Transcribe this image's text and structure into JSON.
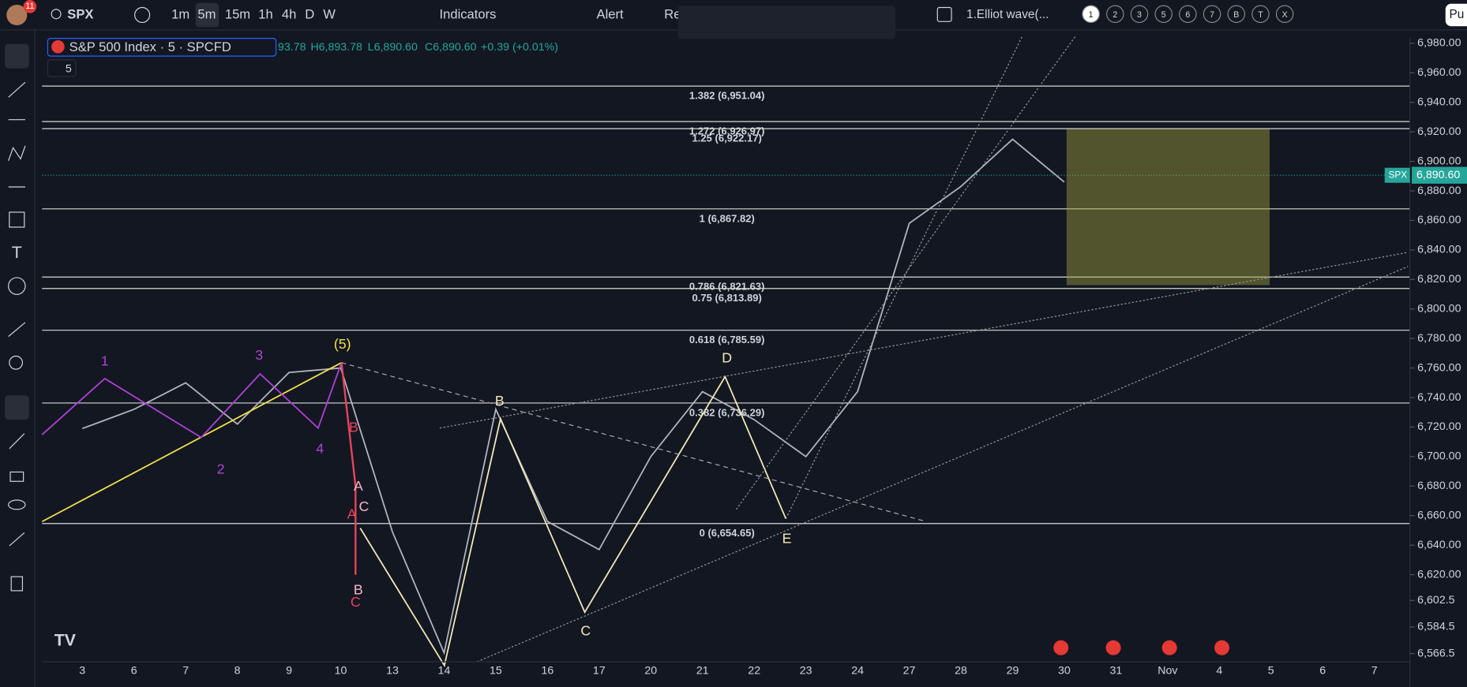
{
  "toolbar": {
    "badge": "11",
    "symbol": "SPX",
    "intervals": [
      "1m",
      "5m",
      "15m",
      "1h",
      "4h",
      "D",
      "W"
    ],
    "indicators": "Indicators",
    "alert": "Alert",
    "replay": "Re",
    "layout_name": "1.Elliot wave(...",
    "pages": [
      "1",
      "2",
      "3",
      "5",
      "6",
      "7",
      "B",
      "T",
      "X"
    ],
    "publish": "Pu"
  },
  "legend": {
    "title": "S&P 500 Index · 5 · SPCFD",
    "open": "93.78",
    "high": "H6,893.78",
    "low": "L6,890.60",
    "close": "C6,890.60",
    "change": "+0.39 (+0.01%)",
    "collapsed_count": "5"
  },
  "chart_data": {
    "type": "line",
    "categories": [
      "3",
      "6",
      "7",
      "8",
      "9",
      "10",
      "13",
      "14",
      "15",
      "16",
      "17",
      "20",
      "21",
      "22",
      "23",
      "24",
      "27",
      "28",
      "29",
      "30",
      "31",
      "Nov",
      "4",
      "5",
      "6",
      "7"
    ],
    "series": [
      {
        "name": "SPX",
        "color": "#b2b5be",
        "values": [
          6719,
          6732,
          6750,
          6722,
          6757,
          6760,
          6649,
          6567,
          6732,
          6656,
          6637,
          6700,
          6744,
          6725,
          6700,
          6744,
          6858,
          6883,
          6915,
          6886,
          null,
          null,
          null,
          null,
          null,
          null
        ]
      }
    ],
    "ylim": [
      6561,
      6984
    ],
    "yticks": [
      {
        "value": 6980,
        "label": "6,980.00"
      },
      {
        "value": 6960,
        "label": "6,960.00"
      },
      {
        "value": 6940,
        "label": "6,940.00"
      },
      {
        "value": 6920,
        "label": "6,920.00"
      },
      {
        "value": 6900,
        "label": "6,900.00"
      },
      {
        "value": 6880,
        "label": "6,880.00"
      },
      {
        "value": 6860,
        "label": "6,860.00"
      },
      {
        "value": 6840,
        "label": "6,840.00"
      },
      {
        "value": 6820,
        "label": "6,820.00"
      },
      {
        "value": 6800,
        "label": "6,800.00"
      },
      {
        "value": 6780,
        "label": "6,780.00"
      },
      {
        "value": 6760,
        "label": "6,760.00"
      },
      {
        "value": 6740,
        "label": "6,740.00"
      },
      {
        "value": 6720,
        "label": "6,720.00"
      },
      {
        "value": 6700,
        "label": "6,700.00"
      },
      {
        "value": 6680,
        "label": "6,680.00"
      },
      {
        "value": 6660,
        "label": "6,660.00"
      },
      {
        "value": 6640,
        "label": "6,640.00"
      },
      {
        "value": 6620,
        "label": "6,620.00"
      },
      {
        "value": 6602.5,
        "label": "6,602.5"
      },
      {
        "value": 6584.5,
        "label": "6,584.5"
      },
      {
        "value": 6566.5,
        "label": "6,566.5"
      }
    ],
    "last_price": {
      "symbol": "SPX",
      "value": 6890.6,
      "label": "6,890.60"
    },
    "fib_levels": [
      {
        "value": 6951.04,
        "label": "1.382 (6,951.04)"
      },
      {
        "value": 6926.97,
        "label": "1.272 (6,926.97)"
      },
      {
        "value": 6922.17,
        "label": "1.25 (6,922.17)"
      },
      {
        "value": 6867.82,
        "label": "1 (6,867.82)"
      },
      {
        "value": 6821.63,
        "label": "0.786 (6,821.63)"
      },
      {
        "value": 6813.89,
        "label": "0.75 (6,813.89)"
      },
      {
        "value": 6785.59,
        "label": "0.618 (6,785.59)"
      },
      {
        "value": 6736.29,
        "label": "0.382 (6,736.29)"
      },
      {
        "value": 6654.65,
        "label": "0 (6,654.65)"
      }
    ],
    "annotations": [
      {
        "text": "1",
        "color": "#b042d8"
      },
      {
        "text": "2",
        "color": "#b042d8"
      },
      {
        "text": "3",
        "color": "#b042d8"
      },
      {
        "text": "4",
        "color": "#b042d8"
      },
      {
        "text": "(5)",
        "color": "#f2e14c"
      },
      {
        "text": "B",
        "color": "#e8445a"
      },
      {
        "text": "A",
        "color": "#f5b6c8"
      },
      {
        "text": "C",
        "color": "#f5b6c8"
      },
      {
        "text": "A",
        "color": "#e8445a"
      },
      {
        "text": "B",
        "color": "#f5b6c8"
      },
      {
        "text": "C",
        "color": "#e8445a"
      },
      {
        "text": "B",
        "color": "#f3e9b8"
      },
      {
        "text": "C",
        "color": "#f3e9b8"
      },
      {
        "text": "D",
        "color": "#f3e9b8"
      },
      {
        "text": "E",
        "color": "#f3e9b8"
      }
    ]
  }
}
